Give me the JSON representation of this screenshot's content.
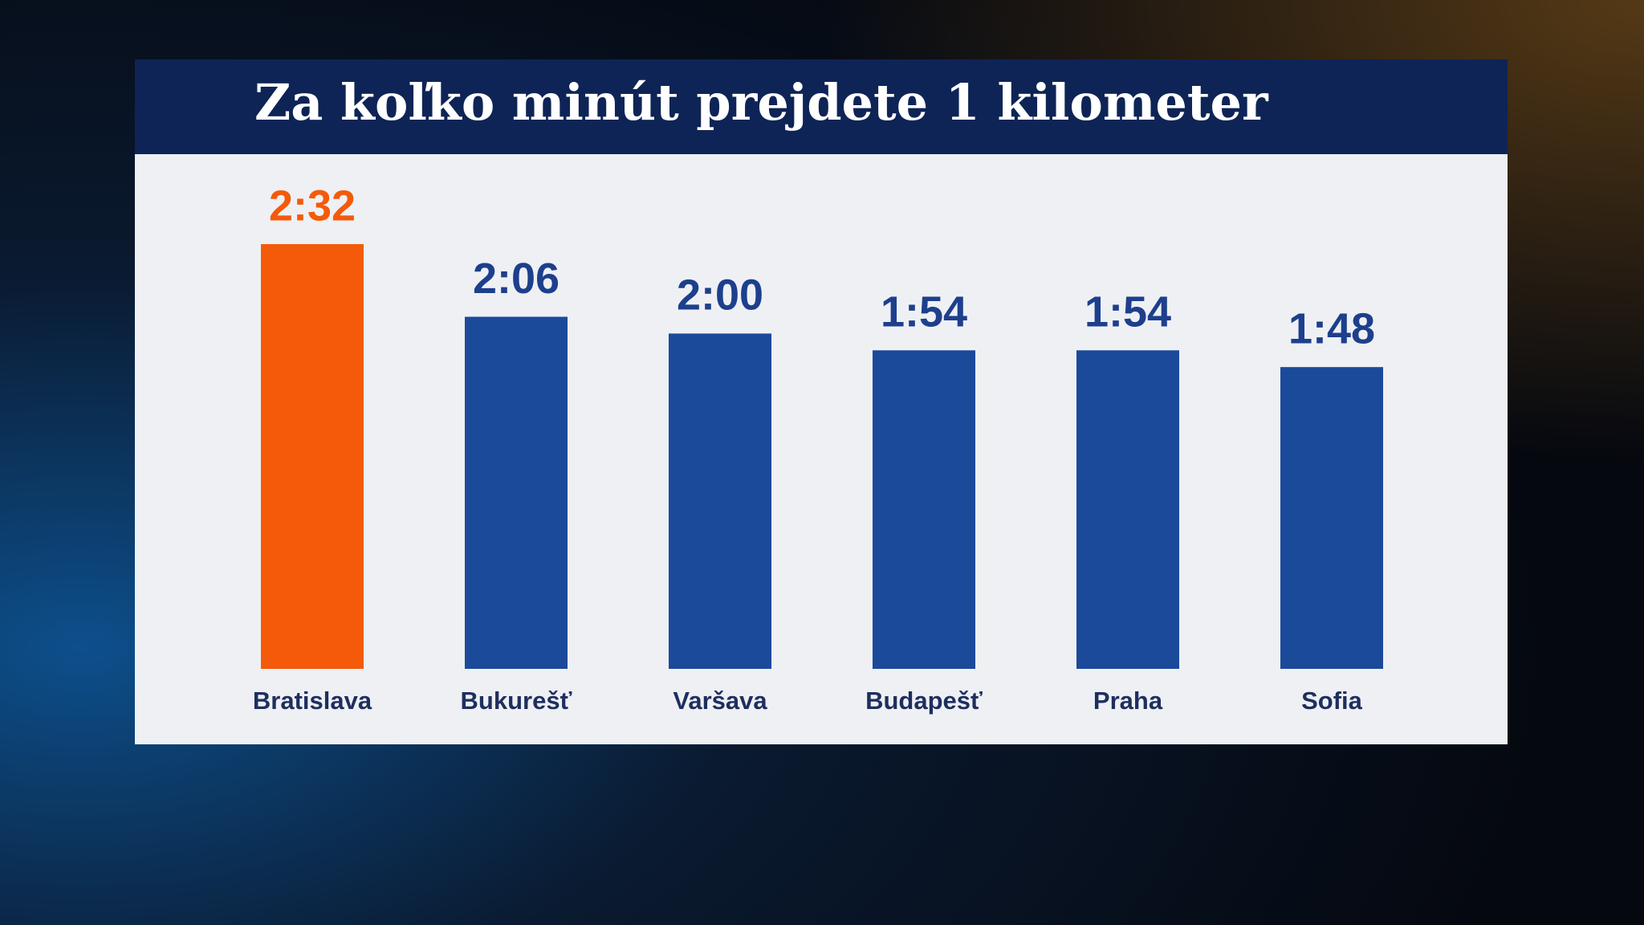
{
  "chart_data": {
    "type": "bar",
    "title": "Za koľko minút prejdete 1 kilometer",
    "categories": [
      "Bratislava",
      "Bukurešť",
      "Varšava",
      "Budapešť",
      "Praha",
      "Sofia"
    ],
    "values": [
      152,
      126,
      120,
      114,
      114,
      108
    ],
    "value_labels": [
      "2:32",
      "2:06",
      "2:00",
      "1:54",
      "1:54",
      "1:48"
    ],
    "colors": [
      "#f45a0a",
      "#1b4a9b",
      "#1b4a9b",
      "#1b4a9b",
      "#1b4a9b",
      "#1b4a9b"
    ]
  }
}
